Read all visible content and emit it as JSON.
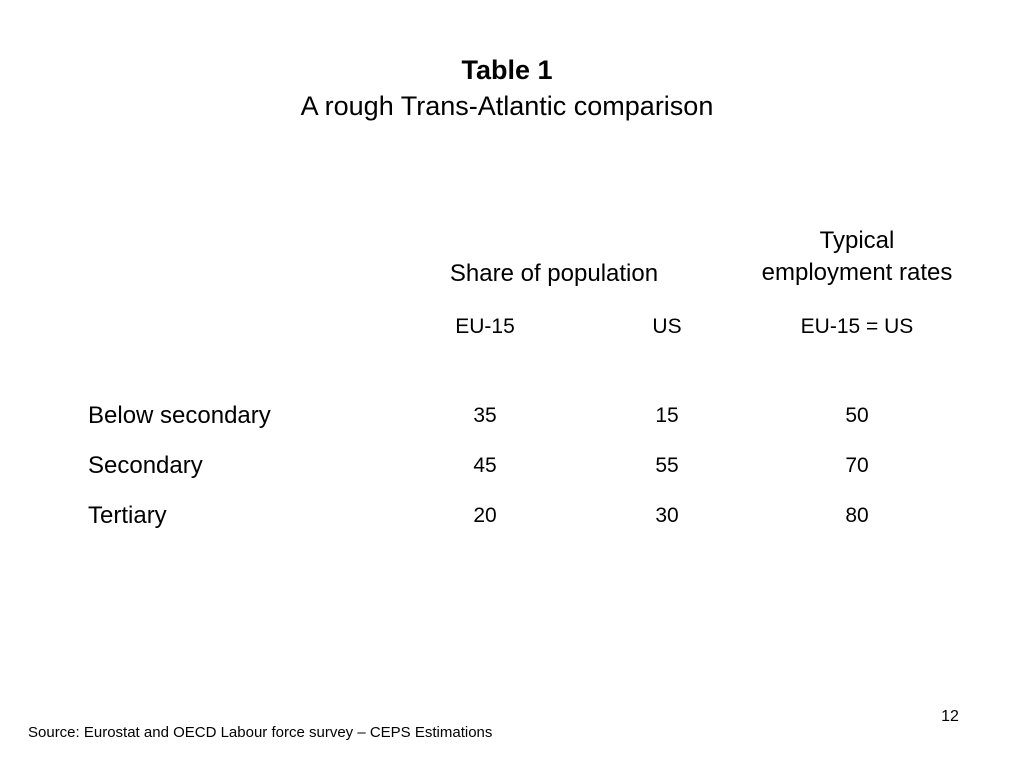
{
  "slide": {
    "title": "Table 1",
    "subtitle": "A rough Trans-Atlantic comparison",
    "page_number": "12",
    "source": "Source: Eurostat and OECD Labour force survey – CEPS Estimations"
  },
  "table": {
    "group_headers": {
      "share": "Share of population",
      "typical_line1": "Typical",
      "typical_line2": "employment rates"
    },
    "sub_headers": [
      "EU-15",
      "US",
      "EU-15 = US"
    ],
    "rows": [
      {
        "label": "Below secondary",
        "eu15": "35",
        "us": "15",
        "employment": "50"
      },
      {
        "label": "Secondary",
        "eu15": "45",
        "us": "55",
        "employment": "70"
      },
      {
        "label": "Tertiary",
        "eu15": "20",
        "us": "30",
        "employment": "80"
      }
    ]
  }
}
